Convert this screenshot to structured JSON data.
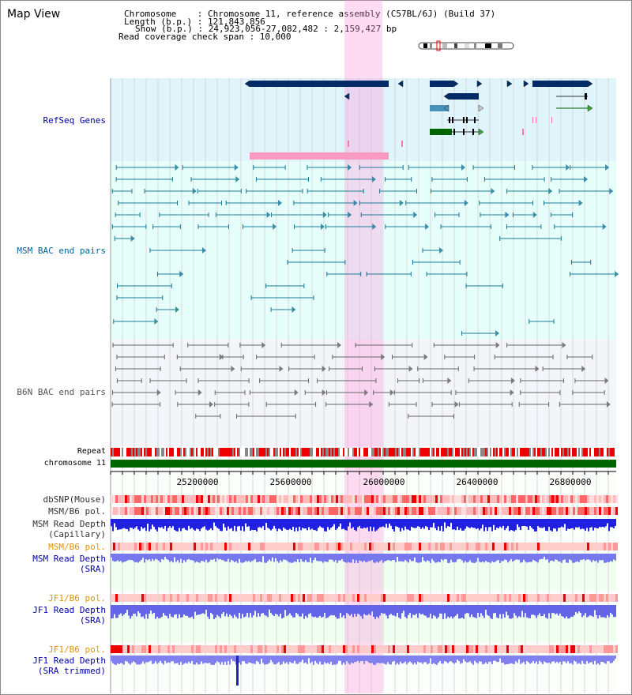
{
  "title": "Map View",
  "header": {
    "line1": "Chromosome    : Chromosome 11, reference assembly (C57BL/6J) (Build 37)",
    "line2": "Length (b.p.) : 121,843,856",
    "line3": "Show (b.p.) : 24,923,056-27,082,482 : 2,159,427 bp",
    "line4": "Read coverage check span : 10,000"
  },
  "tracks": {
    "refseq": "RefSeq Genes",
    "msm_bac": "MSM BAC end pairs",
    "b6n_bac": "B6N BAC end pairs",
    "repeat": "Repeat",
    "chromosome": "chromosome 11",
    "dbsnp": "dbSNP(Mouse)",
    "msm_b6_pol": "MSM/B6 pol.",
    "msm_read_depth_cap_1": "MSM Read Depth",
    "msm_read_depth_cap_2": "(Capillary)",
    "msm_b6_pol_2": "MSM/B6 pol.",
    "msm_read_depth_sra_1": "MSM Read Depth",
    "msm_read_depth_sra_2": "(SRA)",
    "jf1_b6_pol": "JF1/B6 pol.",
    "jf1_read_depth_1": "JF1 Read Depth",
    "jf1_read_depth_2": "(SRA)",
    "jf1_b6_pol_2": "JF1/B6 pol.",
    "jf1_read_depth_trim_1": "JF1 Read Depth",
    "jf1_read_depth_trim_2": "(SRA trimmed)"
  },
  "axis": {
    "ticks": [
      "25200000",
      "25600000",
      "26000000",
      "26400000",
      "26800000"
    ]
  },
  "colors": {
    "refseq_label": "#00009c",
    "msm_label": "#006699",
    "b6n_label": "#555555",
    "orange_label": "#e39400",
    "blue_label": "#0000aa",
    "highlight": "#ff99dd",
    "gene_dark": "#002b66",
    "chromosome": "#006400"
  }
}
